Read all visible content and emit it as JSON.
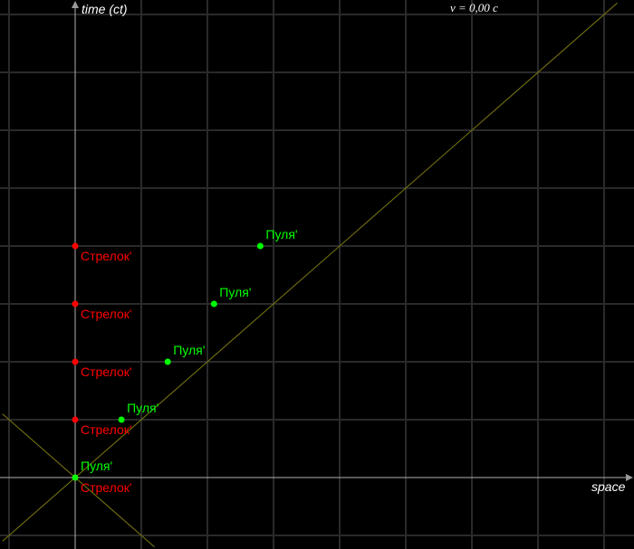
{
  "axes": {
    "time_label": "time (ct)",
    "space_label": "space"
  },
  "velocity_label": "v = 0,00 c",
  "colors": {
    "background": "#000000",
    "grid": "#2a2a2a",
    "axis": "#b0b0b0",
    "light_cone": "#7d7a10",
    "shooter": "#ff0000",
    "bullet": "#00ff00"
  },
  "grid": true,
  "light_cone": true,
  "events": [
    {
      "label": "Стрелок'",
      "series": "shooter",
      "x": 0,
      "t": 0
    },
    {
      "label": "Стрелок'",
      "series": "shooter",
      "x": 0,
      "t": 1
    },
    {
      "label": "Стрелок'",
      "series": "shooter",
      "x": 0,
      "t": 2
    },
    {
      "label": "Стрелок'",
      "series": "shooter",
      "x": 0,
      "t": 3
    },
    {
      "label": "Стрелок'",
      "series": "shooter",
      "x": 0,
      "t": 4
    },
    {
      "label": "Пуля'",
      "series": "bullet",
      "x": 0,
      "t": 0
    },
    {
      "label": "Пуля'",
      "series": "bullet",
      "x": 0.7,
      "t": 1
    },
    {
      "label": "Пуля'",
      "series": "bullet",
      "x": 1.4,
      "t": 2
    },
    {
      "label": "Пуля'",
      "series": "bullet",
      "x": 2.1,
      "t": 3
    },
    {
      "label": "Пуля'",
      "series": "bullet",
      "x": 2.8,
      "t": 4
    }
  ]
}
